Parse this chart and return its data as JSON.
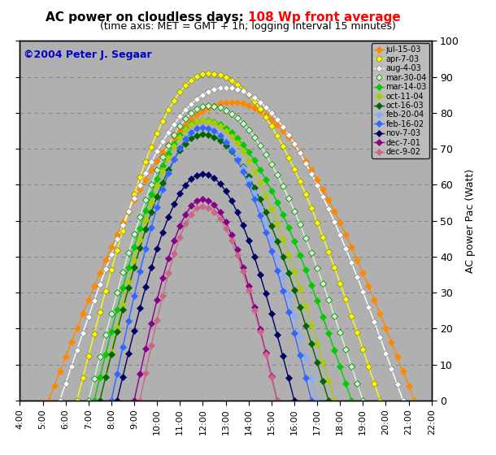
{
  "title_black": "AC power on cloudless days: ",
  "title_red": "108 Wp front average",
  "subtitle": "(time axis: MET = GMT + 1h; logging interval 15 minutes)",
  "ylabel": "AC power Pac (Watt)",
  "copyright": "©2004 Peter J. Segaar",
  "copyright_color": "#0000cc",
  "background_color": "#b0b0b0",
  "xlim_hours": [
    4.0,
    22.0
  ],
  "ylim": [
    0,
    100
  ],
  "yticks": [
    0,
    10,
    20,
    30,
    40,
    50,
    60,
    70,
    80,
    90,
    100
  ],
  "xticks_hours": [
    4.0,
    5.0,
    6.0,
    7.0,
    8.0,
    9.0,
    10.0,
    11.0,
    12.0,
    13.0,
    14.0,
    15.0,
    16.0,
    17.0,
    18.0,
    19.0,
    20.0,
    21.0,
    22.0
  ],
  "series": [
    {
      "label": "jul-15-03",
      "color": "#ff8800",
      "peak": 83,
      "peak_time": 13.25,
      "start": 5.25,
      "end": 21.25,
      "marker": "D",
      "markersize": 4,
      "markeredge": "#ff8800"
    },
    {
      "label": "apr-7-03",
      "color": "#ffff00",
      "peak": 91,
      "peak_time": 12.25,
      "start": 6.5,
      "end": 19.75,
      "marker": "D",
      "markersize": 4,
      "markeredge": "#888800"
    },
    {
      "label": "aug-4-03",
      "color": "#ffffff",
      "peak": 87,
      "peak_time": 13.0,
      "start": 5.75,
      "end": 20.75,
      "marker": "D",
      "markersize": 4,
      "markeredge": "#888888"
    },
    {
      "label": "mar-30-04",
      "color": "#ccffcc",
      "peak": 82,
      "peak_time": 12.25,
      "start": 7.0,
      "end": 19.0,
      "marker": "D",
      "markersize": 4,
      "markeredge": "#006600"
    },
    {
      "label": "mar-14-03",
      "color": "#00cc00",
      "peak": 78,
      "peak_time": 12.0,
      "start": 7.25,
      "end": 18.5,
      "marker": "D",
      "markersize": 4,
      "markeredge": "#00cc00"
    },
    {
      "label": "oct-11-04",
      "color": "#aacc00",
      "peak": 78,
      "peak_time": 12.0,
      "start": 7.5,
      "end": 17.75,
      "marker": "D",
      "markersize": 4,
      "markeredge": "#aacc00"
    },
    {
      "label": "oct-16-03",
      "color": "#006600",
      "peak": 74,
      "peak_time": 12.0,
      "start": 7.5,
      "end": 17.5,
      "marker": "D",
      "markersize": 4,
      "markeredge": "#006600"
    },
    {
      "label": "feb-20-04",
      "color": "#88aaff",
      "peak": 76,
      "peak_time": 12.0,
      "start": 8.0,
      "end": 17.0,
      "marker": "D",
      "markersize": 4,
      "markeredge": "#88aaff"
    },
    {
      "label": "feb-16-02",
      "color": "#3366ff",
      "peak": 76,
      "peak_time": 12.0,
      "start": 8.0,
      "end": 16.75,
      "marker": "D",
      "markersize": 4,
      "markeredge": "#3366ff"
    },
    {
      "label": "nov-7-03",
      "color": "#000066",
      "peak": 63,
      "peak_time": 12.0,
      "start": 8.25,
      "end": 16.0,
      "marker": "D",
      "markersize": 4,
      "markeredge": "#000066"
    },
    {
      "label": "dec-7-01",
      "color": "#880088",
      "peak": 56,
      "peak_time": 12.0,
      "start": 9.0,
      "end": 15.25,
      "marker": "D",
      "markersize": 4,
      "markeredge": "#880088"
    },
    {
      "label": "dec-9-02",
      "color": "#cc6688",
      "peak": 54,
      "peak_time": 12.0,
      "start": 9.25,
      "end": 15.25,
      "marker": "D",
      "markersize": 4,
      "markeredge": "#cc6688"
    }
  ]
}
